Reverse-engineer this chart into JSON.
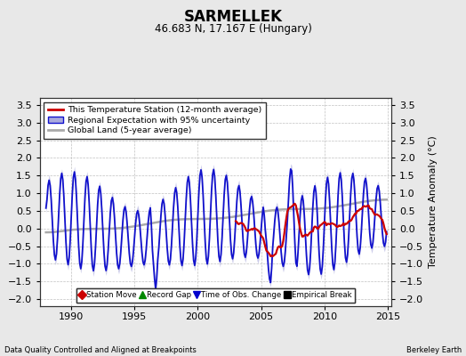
{
  "title": "SARMELLEK",
  "subtitle": "46.683 N, 17.167 E (Hungary)",
  "footer_left": "Data Quality Controlled and Aligned at Breakpoints",
  "footer_right": "Berkeley Earth",
  "ylabel": "Temperature Anomaly (°C)",
  "xlim": [
    1987.5,
    2015.3
  ],
  "ylim": [
    -2.2,
    3.7
  ],
  "yticks": [
    -2,
    -1.5,
    -1,
    -0.5,
    0,
    0.5,
    1,
    1.5,
    2,
    2.5,
    3,
    3.5
  ],
  "xticks": [
    1990,
    1995,
    2000,
    2005,
    2010,
    2015
  ],
  "background_color": "#e8e8e8",
  "plot_bg_color": "#ffffff",
  "grid_color": "#b0b0b0",
  "red_line_color": "#cc0000",
  "blue_line_color": "#1111cc",
  "blue_fill_color": "#aaaadd",
  "gray_line_color": "#aaaaaa",
  "legend_items": [
    "This Temperature Station (12-month average)",
    "Regional Expectation with 95% uncertainty",
    "Global Land (5-year average)"
  ],
  "marker_legend": [
    {
      "label": "Station Move",
      "color": "#cc0000",
      "marker": "D"
    },
    {
      "label": "Record Gap",
      "color": "#008800",
      "marker": "^"
    },
    {
      "label": "Time of Obs. Change",
      "color": "#0000cc",
      "marker": "v"
    },
    {
      "label": "Empirical Break",
      "color": "#000000",
      "marker": "s"
    }
  ]
}
